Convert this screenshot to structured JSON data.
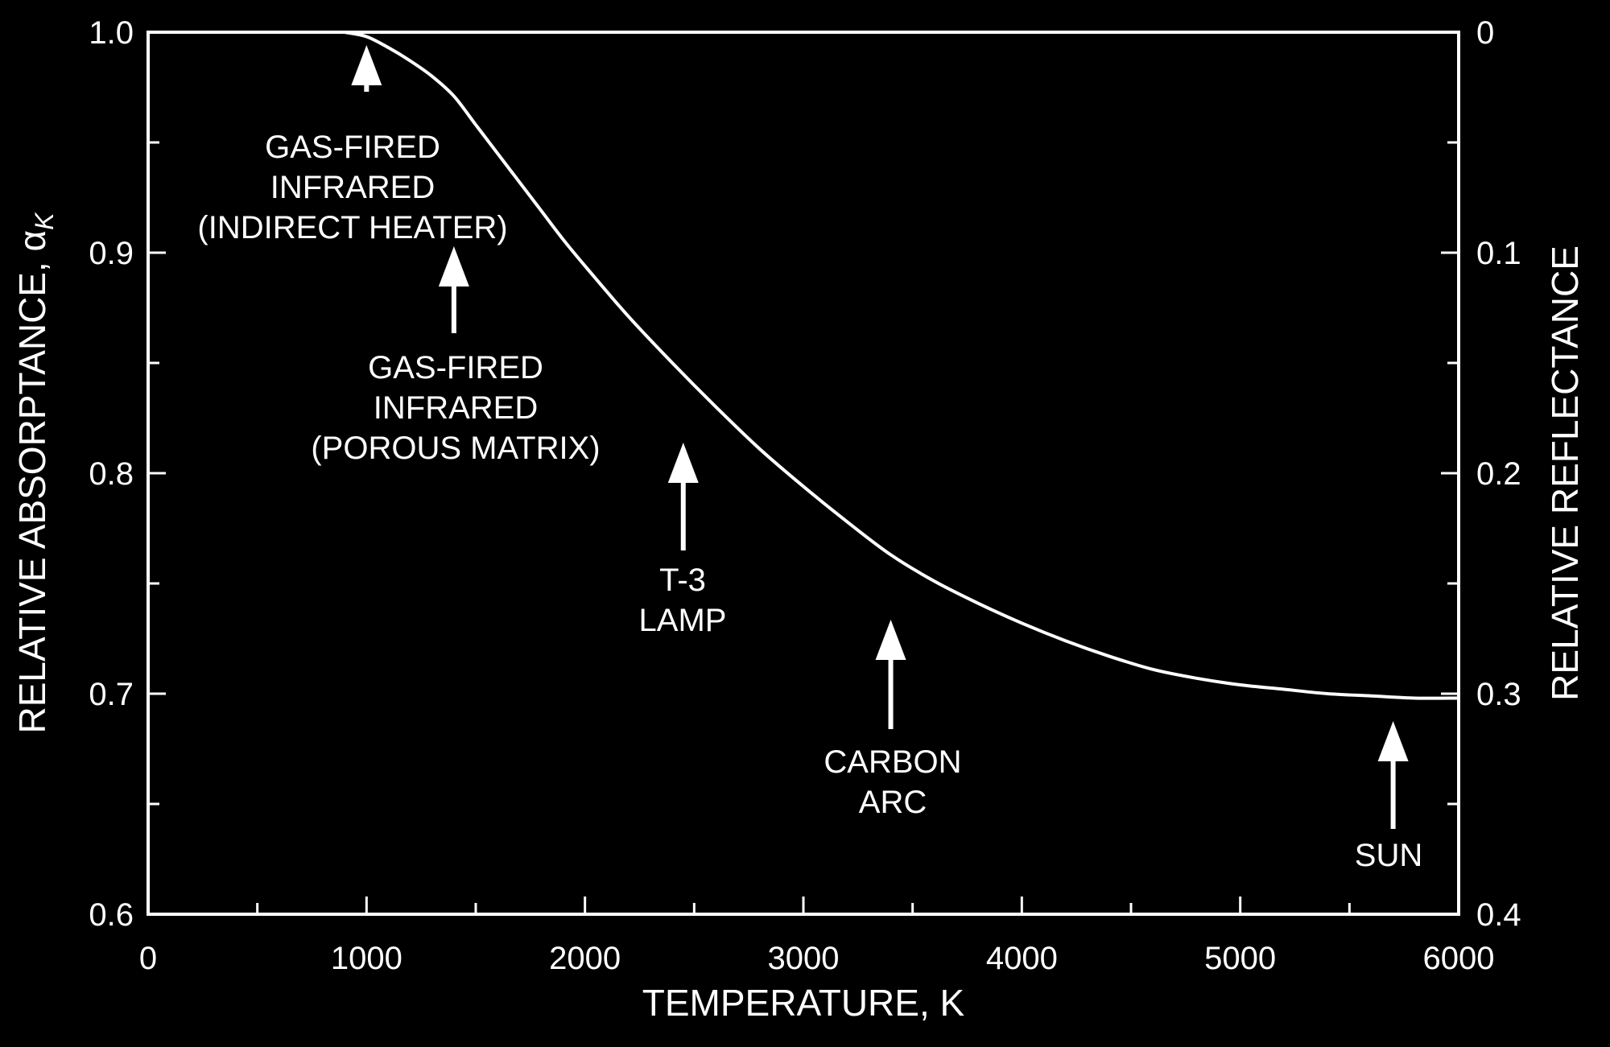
{
  "chart_data": {
    "type": "line",
    "title": "",
    "xlabel": "TEMPERATURE, K",
    "ylabel": "RELATIVE ABSORPTANCE, α",
    "ylabel_subscript": "K",
    "y2label": "RELATIVE REFLECTANCE",
    "xlim": [
      0,
      6000
    ],
    "ylim": [
      0.6,
      1.0
    ],
    "y2lim": [
      0.4,
      0
    ],
    "x_ticks": [
      "0",
      "1000",
      "2000",
      "3000",
      "4000",
      "5000",
      "6000"
    ],
    "y_ticks": [
      "0.6",
      "0.7",
      "0.8",
      "0.9",
      "1.0"
    ],
    "y2_ticks": [
      "0.4",
      "0.3",
      "0.2",
      "0.1",
      "0"
    ],
    "grid": false,
    "series": [
      {
        "x": [
          900,
          1000,
          1100,
          1200,
          1300,
          1400,
          1500,
          1600,
          1700,
          1800,
          1900,
          2000,
          2200,
          2400,
          2600,
          2800,
          3000,
          3200,
          3400,
          3600,
          3800,
          4000,
          4200,
          4400,
          4600,
          4800,
          5000,
          5200,
          5400,
          5600,
          5800,
          6000
        ],
        "y": [
          1.0,
          0.998,
          0.993,
          0.987,
          0.98,
          0.971,
          0.958,
          0.945,
          0.932,
          0.919,
          0.906,
          0.894,
          0.871,
          0.85,
          0.83,
          0.811,
          0.794,
          0.778,
          0.763,
          0.751,
          0.741,
          0.732,
          0.724,
          0.717,
          0.711,
          0.707,
          0.704,
          0.702,
          0.7,
          0.699,
          0.698,
          0.698
        ]
      }
    ],
    "annotations": [
      {
        "lines": [
          "GAS-FIRED",
          "INFRARED",
          "(INDIRECT HEATER)"
        ],
        "x": 1000,
        "arrow": "above"
      },
      {
        "lines": [
          "GAS-FIRED",
          "INFRARED",
          "(POROUS MATRIX)"
        ],
        "x": 1400,
        "arrow": "above"
      },
      {
        "lines": [
          "T-3",
          "LAMP"
        ],
        "x": 2450,
        "arrow": "below"
      },
      {
        "lines": [
          "CARBON",
          "ARC"
        ],
        "x": 3400,
        "arrow": "below"
      },
      {
        "lines": [
          "SUN"
        ],
        "x": 5700,
        "arrow": "below"
      }
    ],
    "colors": {
      "background": "#000000",
      "foreground": "#ffffff"
    }
  }
}
